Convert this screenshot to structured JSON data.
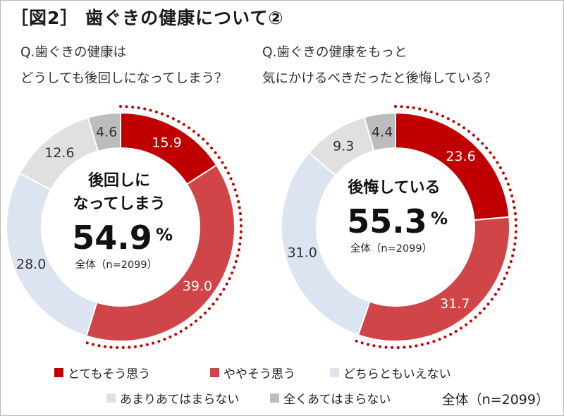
{
  "title": "［図2］ 歯ぐきの健康について②",
  "chart_data": [
    {
      "type": "pie",
      "question": [
        "Q.歯ぐきの健康は",
        "どうしても後回しになってしまう？"
      ],
      "categories": [
        "とてもそう思う",
        "ややそう思う",
        "どちらともいえない",
        "あまりあてはまらない",
        "全くあてはまらない"
      ],
      "values": [
        15.9,
        39.0,
        28.0,
        12.6,
        4.6
      ],
      "value_labels": [
        "15.9",
        "39.0",
        "28.0",
        "12.6",
        "4.6"
      ],
      "center_text": [
        "後回しに",
        "なってしまう"
      ],
      "center_value": "54.9",
      "center_unit": "%",
      "center_n": "全体（n=2099）"
    },
    {
      "type": "pie",
      "question": [
        "Q.歯ぐきの健康をもっと",
        "気にかけるべきだったと後悔している？"
      ],
      "categories": [
        "とてもそう思う",
        "ややそう思う",
        "どちらともいえない",
        "あまりあてはまらない",
        "全くあてはまらない"
      ],
      "values": [
        23.6,
        31.7,
        31.0,
        9.3,
        4.4
      ],
      "value_labels": [
        "23.6",
        "31.7",
        "31.0",
        "9.3",
        "4.4"
      ],
      "center_text": [
        "後悔している"
      ],
      "center_value": "55.3",
      "center_unit": "%",
      "center_n": "全体（n=2099）"
    }
  ],
  "colors": [
    "#c00000",
    "#d04548",
    "#dce4f2",
    "#e0e0e0",
    "#bcbcbc"
  ],
  "dot_color": "#c00000",
  "legend": {
    "items": [
      {
        "label": "とてもそう思う",
        "color": "#c00000"
      },
      {
        "label": "ややそう思う",
        "color": "#d04548"
      },
      {
        "label": "どちらともいえない",
        "color": "#dce4f2"
      },
      {
        "label": "あまりあてはまらない",
        "color": "#e0e0e0"
      },
      {
        "label": "全くあてはまらない",
        "color": "#bcbcbc"
      }
    ]
  },
  "footer": "全体（n=2099）"
}
